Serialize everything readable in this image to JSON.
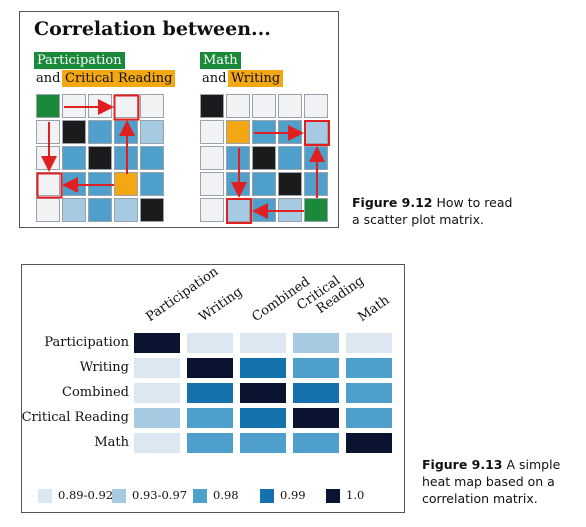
{
  "fig12": {
    "title": "Correlation between...",
    "left_tag_1": "Participation",
    "left_and": "and",
    "left_tag_2": "Critical Reading",
    "right_tag_1": "Math",
    "right_and": "and",
    "right_tag_2": "Writing"
  },
  "caption12": {
    "label": "Figure 9.12",
    "text1": "How to read",
    "text2": "a scatter plot matrix."
  },
  "caption13": {
    "label": "Figure 9.13",
    "text1": "A simple",
    "text2": "heat map based on a",
    "text3": "correlation matrix."
  },
  "heatmap": {
    "rows": [
      "Participation",
      "Writing",
      "Combined",
      "Critical Reading",
      "Math"
    ],
    "cols": [
      "Participation",
      "Writing",
      "Combined",
      "Critical\nReading",
      "Math"
    ],
    "colors": {
      "c1": "#dde7f2",
      "c2": "#a7cae3",
      "c3": "#4f9fcc",
      "c4": "#1672ad",
      "c5": "#0a1330"
    },
    "levels": [
      [
        "c5",
        "c1",
        "c1",
        "c2",
        "c1"
      ],
      [
        "c1",
        "c5",
        "c4",
        "c3",
        "c3"
      ],
      [
        "c1",
        "c4",
        "c5",
        "c4",
        "c3"
      ],
      [
        "c2",
        "c3",
        "c4",
        "c5",
        "c3"
      ],
      [
        "c1",
        "c3",
        "c3",
        "c3",
        "c5"
      ]
    ],
    "legend": [
      {
        "key": "c1",
        "label": "0.89-0.92"
      },
      {
        "key": "c2",
        "label": "0.93-0.97"
      },
      {
        "key": "c3",
        "label": "0.98"
      },
      {
        "key": "c4",
        "label": "0.99"
      },
      {
        "key": "c5",
        "label": "1.0"
      }
    ]
  },
  "matrix_colors": {
    "white": "#f1f2f4",
    "light": "#a7cae3",
    "mid": "#4f9fcc",
    "black": "#1b1b1b",
    "green": "#1a8a3a",
    "orange": "#f3a712",
    "arrow": "#e02020"
  },
  "matrix_left": [
    [
      "green",
      "white",
      "white",
      "white",
      "white"
    ],
    [
      "white",
      "black",
      "mid",
      "mid",
      "light"
    ],
    [
      "white",
      "mid",
      "black",
      "mid",
      "mid"
    ],
    [
      "white",
      "mid",
      "mid",
      "orange",
      "mid"
    ],
    [
      "white",
      "light",
      "mid",
      "light",
      "black"
    ]
  ],
  "matrix_right": [
    [
      "black",
      "white",
      "white",
      "white",
      "white"
    ],
    [
      "white",
      "orange",
      "mid",
      "mid",
      "light"
    ],
    [
      "white",
      "mid",
      "black",
      "mid",
      "mid"
    ],
    [
      "white",
      "mid",
      "mid",
      "black",
      "mid"
    ],
    [
      "white",
      "light",
      "mid",
      "light",
      "green"
    ]
  ]
}
